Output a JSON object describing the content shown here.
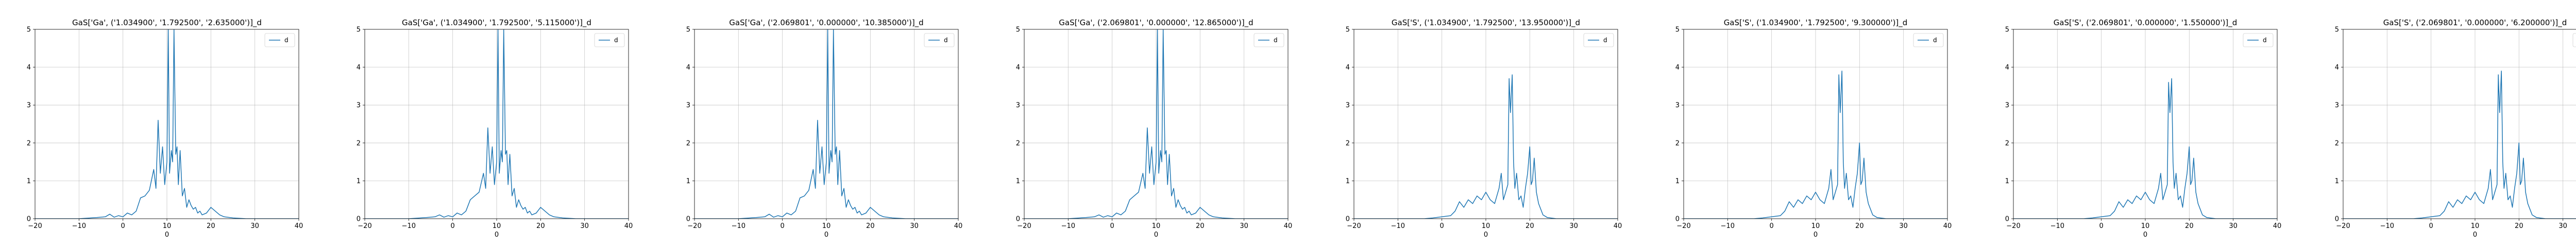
{
  "chart_data": [
    {
      "type": "line",
      "title": "GaS['Ga', ('1.034900', '1.792500', '2.635000')]_d",
      "xlabel": "0",
      "ylabel": "",
      "xlim": [
        -20,
        40
      ],
      "ylim": [
        0,
        5
      ],
      "xticks": [
        -20,
        -10,
        0,
        10,
        20,
        30,
        40
      ],
      "yticks": [
        0,
        1,
        2,
        3,
        4,
        5
      ],
      "grid": true,
      "legend_position": "top-right",
      "series": [
        {
          "name": "d",
          "color": "#1f77b4",
          "x": [
            -20,
            -15,
            -10,
            -6,
            -4,
            -3,
            -2,
            -1,
            0,
            1,
            2,
            3,
            4,
            5,
            6,
            7,
            7.5,
            8,
            8.5,
            9,
            9.5,
            10,
            10.3,
            10.6,
            11,
            11.3,
            11.6,
            12,
            12.3,
            12.6,
            13,
            13.5,
            14,
            14.5,
            15,
            15.5,
            16,
            16.5,
            17,
            17.5,
            18,
            19,
            20,
            21,
            22,
            23,
            25,
            28,
            32,
            36,
            40
          ],
          "y": [
            0,
            0,
            0,
            0.03,
            0.05,
            0.12,
            0.04,
            0.08,
            0.05,
            0.15,
            0.1,
            0.2,
            0.55,
            0.6,
            0.75,
            1.3,
            0.8,
            2.6,
            1.2,
            1.9,
            0.9,
            1.5,
            5.0,
            1.2,
            1.8,
            1.5,
            5.0,
            1.7,
            1.9,
            0.9,
            1.8,
            0.6,
            0.8,
            0.3,
            0.5,
            0.35,
            0.25,
            0.3,
            0.15,
            0.2,
            0.1,
            0.15,
            0.3,
            0.2,
            0.1,
            0.05,
            0.02,
            0,
            0,
            0,
            0
          ]
        }
      ]
    },
    {
      "type": "line",
      "title": "GaS['Ga', ('1.034900', '1.792500', '5.115000')]_d",
      "xlabel": "0",
      "ylabel": "",
      "xlim": [
        -20,
        40
      ],
      "ylim": [
        0,
        5
      ],
      "xticks": [
        -20,
        -10,
        0,
        10,
        20,
        30,
        40
      ],
      "yticks": [
        0,
        1,
        2,
        3,
        4,
        5
      ],
      "grid": true,
      "legend_position": "top-right",
      "series": [
        {
          "name": "d",
          "color": "#1f77b4",
          "x": [
            -20,
            -15,
            -10,
            -6,
            -4,
            -3,
            -2,
            -1,
            0,
            1,
            2,
            3,
            4,
            5,
            6,
            7,
            7.5,
            8,
            8.5,
            9,
            9.5,
            10,
            10.3,
            10.6,
            11,
            11.3,
            11.6,
            12,
            12.3,
            12.6,
            13,
            13.5,
            14,
            14.5,
            15,
            15.5,
            16,
            16.5,
            17,
            17.5,
            18,
            19,
            20,
            21,
            22,
            23,
            25,
            28,
            32,
            36,
            40
          ],
          "y": [
            0,
            0,
            0,
            0.03,
            0.05,
            0.1,
            0.04,
            0.08,
            0.05,
            0.15,
            0.1,
            0.2,
            0.5,
            0.6,
            0.7,
            1.2,
            0.8,
            2.4,
            1.2,
            1.9,
            0.9,
            1.5,
            5.0,
            1.2,
            1.8,
            1.5,
            5.0,
            1.7,
            1.8,
            0.9,
            1.7,
            0.6,
            0.8,
            0.3,
            0.5,
            0.35,
            0.25,
            0.3,
            0.15,
            0.2,
            0.1,
            0.15,
            0.3,
            0.2,
            0.1,
            0.05,
            0.02,
            0,
            0,
            0,
            0
          ]
        }
      ]
    },
    {
      "type": "line",
      "title": "GaS['Ga', ('2.069801', '0.000000', '10.385000')]_d",
      "xlabel": "0",
      "ylabel": "",
      "xlim": [
        -20,
        40
      ],
      "ylim": [
        0,
        5
      ],
      "xticks": [
        -20,
        -10,
        0,
        10,
        20,
        30,
        40
      ],
      "yticks": [
        0,
        1,
        2,
        3,
        4,
        5
      ],
      "grid": true,
      "legend_position": "top-right",
      "series": [
        {
          "name": "d",
          "color": "#1f77b4",
          "x": [
            -20,
            -15,
            -10,
            -6,
            -4,
            -3,
            -2,
            -1,
            0,
            1,
            2,
            3,
            4,
            5,
            6,
            7,
            7.5,
            8,
            8.5,
            9,
            9.5,
            10,
            10.3,
            10.6,
            11,
            11.3,
            11.6,
            12,
            12.3,
            12.6,
            13,
            13.5,
            14,
            14.5,
            15,
            15.5,
            16,
            16.5,
            17,
            17.5,
            18,
            19,
            20,
            21,
            22,
            23,
            25,
            28,
            32,
            36,
            40
          ],
          "y": [
            0,
            0,
            0,
            0.03,
            0.05,
            0.12,
            0.04,
            0.08,
            0.05,
            0.15,
            0.1,
            0.2,
            0.55,
            0.6,
            0.75,
            1.3,
            0.8,
            2.6,
            1.2,
            1.9,
            0.9,
            1.5,
            5.0,
            1.2,
            1.8,
            1.5,
            5.0,
            1.7,
            1.9,
            0.9,
            1.8,
            0.6,
            0.8,
            0.3,
            0.5,
            0.35,
            0.25,
            0.3,
            0.15,
            0.2,
            0.1,
            0.15,
            0.3,
            0.2,
            0.1,
            0.05,
            0.02,
            0,
            0,
            0,
            0
          ]
        }
      ]
    },
    {
      "type": "line",
      "title": "GaS['Ga', ('2.069801', '0.000000', '12.865000')]_d",
      "xlabel": "0",
      "ylabel": "",
      "xlim": [
        -20,
        40
      ],
      "ylim": [
        0,
        5
      ],
      "xticks": [
        -20,
        -10,
        0,
        10,
        20,
        30,
        40
      ],
      "yticks": [
        0,
        1,
        2,
        3,
        4,
        5
      ],
      "grid": true,
      "legend_position": "top-right",
      "series": [
        {
          "name": "d",
          "color": "#1f77b4",
          "x": [
            -20,
            -15,
            -10,
            -6,
            -4,
            -3,
            -2,
            -1,
            0,
            1,
            2,
            3,
            4,
            5,
            6,
            7,
            7.5,
            8,
            8.5,
            9,
            9.5,
            10,
            10.3,
            10.6,
            11,
            11.3,
            11.6,
            12,
            12.3,
            12.6,
            13,
            13.5,
            14,
            14.5,
            15,
            15.5,
            16,
            16.5,
            17,
            17.5,
            18,
            19,
            20,
            21,
            22,
            23,
            25,
            28,
            32,
            36,
            40
          ],
          "y": [
            0,
            0,
            0,
            0.03,
            0.05,
            0.1,
            0.04,
            0.08,
            0.05,
            0.15,
            0.1,
            0.2,
            0.5,
            0.6,
            0.7,
            1.2,
            0.8,
            2.4,
            1.2,
            1.9,
            0.9,
            1.5,
            5.0,
            1.2,
            1.8,
            1.5,
            5.0,
            1.7,
            1.8,
            0.9,
            1.7,
            0.6,
            0.8,
            0.3,
            0.5,
            0.35,
            0.25,
            0.3,
            0.15,
            0.2,
            0.1,
            0.15,
            0.3,
            0.2,
            0.1,
            0.05,
            0.02,
            0,
            0,
            0,
            0
          ]
        }
      ]
    },
    {
      "type": "line",
      "title": "GaS['S', ('1.034900', '1.792500', '13.950000')]_d",
      "xlabel": "0",
      "ylabel": "",
      "xlim": [
        -20,
        40
      ],
      "ylim": [
        0,
        5
      ],
      "xticks": [
        -20,
        -10,
        0,
        10,
        20,
        30,
        40
      ],
      "yticks": [
        0,
        1,
        2,
        3,
        4,
        5
      ],
      "grid": true,
      "legend_position": "top-right",
      "series": [
        {
          "name": "d",
          "color": "#1f77b4",
          "x": [
            -20,
            -15,
            -10,
            -6,
            -4,
            -2,
            0,
            2,
            3,
            4,
            5,
            6,
            7,
            8,
            9,
            10,
            11,
            12,
            13,
            13.5,
            14,
            14.5,
            15,
            15.3,
            15.6,
            16,
            16.3,
            16.6,
            17,
            17.5,
            18,
            18.5,
            19,
            19.5,
            20,
            20.3,
            20.6,
            21,
            21.5,
            22,
            23,
            24,
            26,
            30,
            35,
            40
          ],
          "y": [
            0,
            0,
            0,
            0,
            0,
            0.02,
            0.05,
            0.08,
            0.2,
            0.45,
            0.3,
            0.5,
            0.4,
            0.6,
            0.5,
            0.7,
            0.5,
            0.4,
            0.8,
            1.2,
            0.5,
            0.7,
            0.9,
            3.7,
            2.8,
            3.8,
            1.5,
            0.8,
            1.2,
            0.5,
            0.6,
            0.3,
            0.8,
            1.2,
            1.9,
            0.9,
            1.0,
            1.6,
            0.7,
            0.4,
            0.1,
            0.03,
            0,
            0,
            0,
            0
          ]
        }
      ]
    },
    {
      "type": "line",
      "title": "GaS['S', ('1.034900', '1.792500', '9.300000')]_d",
      "xlabel": "0",
      "ylabel": "",
      "xlim": [
        -20,
        40
      ],
      "ylim": [
        0,
        5
      ],
      "xticks": [
        -20,
        -10,
        0,
        10,
        20,
        30,
        40
      ],
      "yticks": [
        0,
        1,
        2,
        3,
        4,
        5
      ],
      "grid": true,
      "legend_position": "top-right",
      "series": [
        {
          "name": "d",
          "color": "#1f77b4",
          "x": [
            -20,
            -15,
            -10,
            -6,
            -4,
            -2,
            0,
            2,
            3,
            4,
            5,
            6,
            7,
            8,
            9,
            10,
            11,
            12,
            13,
            13.5,
            14,
            14.5,
            15,
            15.3,
            15.6,
            16,
            16.3,
            16.6,
            17,
            17.5,
            18,
            18.5,
            19,
            19.5,
            20,
            20.3,
            20.6,
            21,
            21.5,
            22,
            23,
            24,
            26,
            30,
            35,
            40
          ],
          "y": [
            0,
            0,
            0,
            0,
            0,
            0.02,
            0.05,
            0.08,
            0.2,
            0.45,
            0.3,
            0.5,
            0.4,
            0.6,
            0.5,
            0.7,
            0.5,
            0.4,
            0.8,
            1.3,
            0.5,
            0.7,
            0.9,
            3.8,
            2.8,
            3.9,
            1.5,
            0.8,
            1.2,
            0.5,
            0.6,
            0.3,
            0.8,
            1.2,
            2.0,
            0.9,
            1.0,
            1.6,
            0.7,
            0.4,
            0.1,
            0.03,
            0,
            0,
            0,
            0
          ]
        }
      ]
    },
    {
      "type": "line",
      "title": "GaS['S', ('2.069801', '0.000000', '1.550000')]_d",
      "xlabel": "0",
      "ylabel": "",
      "xlim": [
        -20,
        40
      ],
      "ylim": [
        0,
        5
      ],
      "xticks": [
        -20,
        -10,
        0,
        10,
        20,
        30,
        40
      ],
      "yticks": [
        0,
        1,
        2,
        3,
        4,
        5
      ],
      "grid": true,
      "legend_position": "top-right",
      "series": [
        {
          "name": "d",
          "color": "#1f77b4",
          "x": [
            -20,
            -15,
            -10,
            -6,
            -4,
            -2,
            0,
            2,
            3,
            4,
            5,
            6,
            7,
            8,
            9,
            10,
            11,
            12,
            13,
            13.5,
            14,
            14.5,
            15,
            15.3,
            15.6,
            16,
            16.3,
            16.6,
            17,
            17.5,
            18,
            18.5,
            19,
            19.5,
            20,
            20.3,
            20.6,
            21,
            21.5,
            22,
            23,
            24,
            26,
            30,
            35,
            40
          ],
          "y": [
            0,
            0,
            0,
            0,
            0,
            0.02,
            0.05,
            0.08,
            0.2,
            0.45,
            0.3,
            0.5,
            0.4,
            0.6,
            0.5,
            0.7,
            0.5,
            0.4,
            0.8,
            1.2,
            0.5,
            0.7,
            0.9,
            3.6,
            2.8,
            3.7,
            1.5,
            0.8,
            1.2,
            0.5,
            0.6,
            0.3,
            0.8,
            1.2,
            1.9,
            0.9,
            1.0,
            1.6,
            0.7,
            0.4,
            0.1,
            0.03,
            0,
            0,
            0,
            0
          ]
        }
      ]
    },
    {
      "type": "line",
      "title": "GaS['S', ('2.069801', '0.000000', '6.200000')]_d",
      "xlabel": "0",
      "ylabel": "",
      "xlim": [
        -20,
        40
      ],
      "ylim": [
        0,
        5
      ],
      "xticks": [
        -20,
        -10,
        0,
        10,
        20,
        30,
        40
      ],
      "yticks": [
        0,
        1,
        2,
        3,
        4,
        5
      ],
      "grid": true,
      "legend_position": "top-right",
      "series": [
        {
          "name": "d",
          "color": "#1f77b4",
          "x": [
            -20,
            -15,
            -10,
            -6,
            -4,
            -2,
            0,
            2,
            3,
            4,
            5,
            6,
            7,
            8,
            9,
            10,
            11,
            12,
            13,
            13.5,
            14,
            14.5,
            15,
            15.3,
            15.6,
            16,
            16.3,
            16.6,
            17,
            17.5,
            18,
            18.5,
            19,
            19.5,
            20,
            20.3,
            20.6,
            21,
            21.5,
            22,
            23,
            24,
            26,
            30,
            35,
            40
          ],
          "y": [
            0,
            0,
            0,
            0,
            0,
            0.02,
            0.05,
            0.08,
            0.2,
            0.45,
            0.3,
            0.5,
            0.4,
            0.6,
            0.5,
            0.7,
            0.5,
            0.4,
            0.8,
            1.3,
            0.5,
            0.7,
            0.9,
            3.8,
            2.8,
            3.9,
            1.5,
            0.8,
            1.2,
            0.5,
            0.6,
            0.3,
            0.8,
            1.2,
            2.0,
            0.9,
            1.0,
            1.6,
            0.7,
            0.4,
            0.1,
            0.03,
            0,
            0,
            0,
            0
          ]
        }
      ]
    }
  ]
}
